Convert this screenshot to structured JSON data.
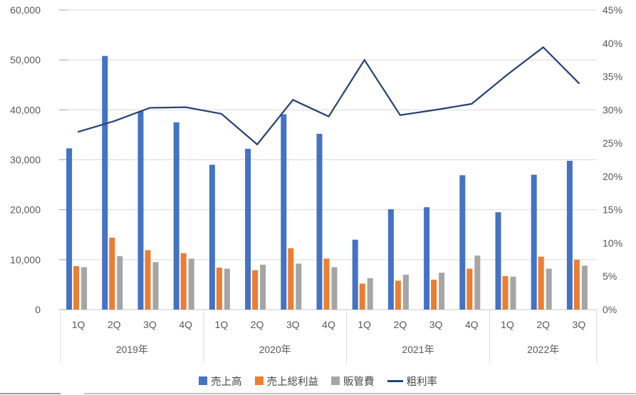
{
  "chart_data": {
    "type": "combo-bar-line",
    "title": "",
    "categories": [
      "1Q",
      "2Q",
      "3Q",
      "4Q",
      "1Q",
      "2Q",
      "3Q",
      "4Q",
      "1Q",
      "2Q",
      "3Q",
      "4Q",
      "1Q",
      "2Q",
      "3Q"
    ],
    "year_groups": [
      {
        "label": "2019年",
        "count": 4
      },
      {
        "label": "2020年",
        "count": 4
      },
      {
        "label": "2021年",
        "count": 4
      },
      {
        "label": "2022年",
        "count": 3
      }
    ],
    "series": [
      {
        "name": "売上高",
        "chart_type": "bar",
        "axis": "left",
        "color": "#4472C4",
        "values": [
          32300,
          50800,
          39700,
          37500,
          29000,
          32200,
          39100,
          35200,
          14000,
          20100,
          20500,
          26900,
          19500,
          27000,
          29800
        ]
      },
      {
        "name": "売上総利益",
        "chart_type": "bar",
        "axis": "left",
        "color": "#ED7D31",
        "values": [
          8700,
          14400,
          11900,
          11300,
          8400,
          7900,
          12300,
          10200,
          5200,
          5800,
          6000,
          8200,
          6700,
          10600,
          10000
        ]
      },
      {
        "name": "販管費",
        "chart_type": "bar",
        "axis": "left",
        "color": "#A5A5A5",
        "values": [
          8500,
          10700,
          9500,
          10200,
          8200,
          9000,
          9200,
          8500,
          6300,
          7000,
          7400,
          10800,
          6600,
          8200,
          8800
        ]
      },
      {
        "name": "粗利率",
        "chart_type": "line",
        "axis": "right",
        "color": "#264478",
        "values": [
          26.7,
          28.3,
          30.3,
          30.4,
          29.4,
          24.8,
          31.5,
          29.0,
          37.5,
          29.2,
          30.0,
          30.9,
          35.3,
          39.4,
          34.0
        ]
      }
    ],
    "left_axis": {
      "min": 0,
      "max": 60000,
      "tick_labels": [
        "0",
        "10,000",
        "20,000",
        "30,000",
        "40,000",
        "50,000",
        "60,000"
      ]
    },
    "right_axis": {
      "min": 0,
      "max": 45,
      "tick_labels": [
        "0%",
        "5%",
        "10%",
        "15%",
        "20%",
        "25%",
        "30%",
        "35%",
        "40%",
        "45%"
      ]
    },
    "legend_position": "bottom",
    "grid": true
  },
  "colors": {
    "axis_text": "#595959",
    "gridline": "#D9D9D9",
    "axis_line": "#C9C9C9",
    "tick_mark": "#A6A6A6"
  }
}
